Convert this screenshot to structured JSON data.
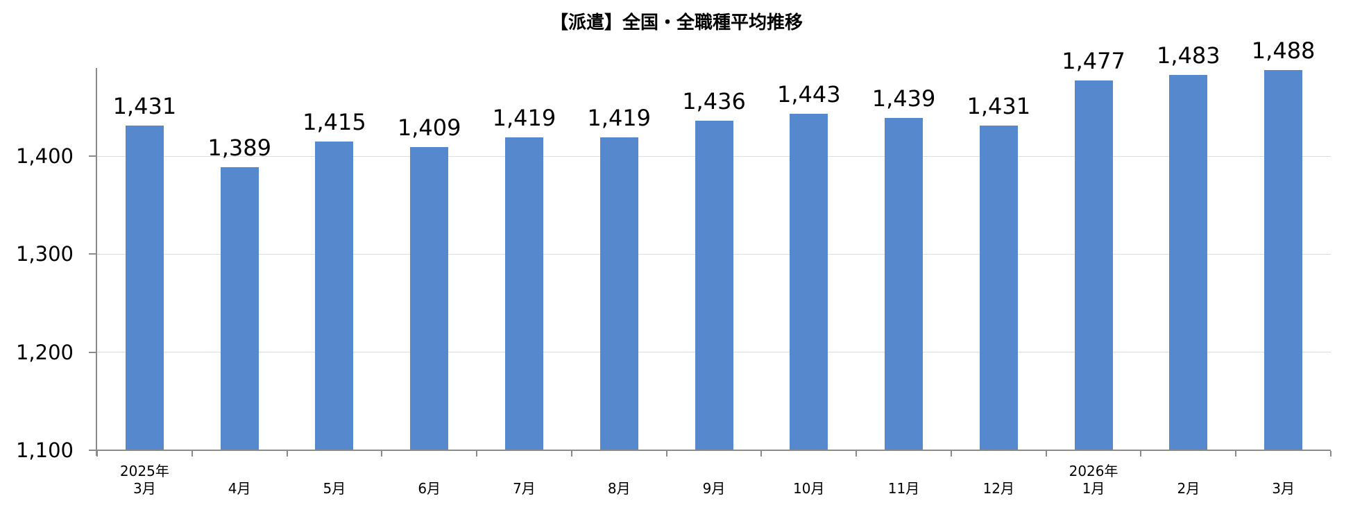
{
  "chart_data": {
    "type": "bar",
    "title": "【派遣】全国・全職種平均推移",
    "months": [
      "3月",
      "4月",
      "5月",
      "6月",
      "7月",
      "8月",
      "9月",
      "10月",
      "11月",
      "12月",
      "1月",
      "2月",
      "3月"
    ],
    "year_markers": [
      {
        "index": 0,
        "label": "2025年"
      },
      {
        "index": 10,
        "label": "2026年"
      }
    ],
    "values": [
      1431,
      1389,
      1415,
      1409,
      1419,
      1419,
      1436,
      1443,
      1439,
      1431,
      1477,
      1483,
      1488
    ],
    "value_labels": [
      "1,431",
      "1,389",
      "1,415",
      "1,409",
      "1,419",
      "1,419",
      "1,436",
      "1,443",
      "1,439",
      "1,431",
      "1,477",
      "1,483",
      "1,488"
    ],
    "y_axis": {
      "min": 1100,
      "max": 1490,
      "ticks": [
        {
          "value": 1100,
          "label": "1,100"
        },
        {
          "value": 1200,
          "label": "1,200"
        },
        {
          "value": 1300,
          "label": "1,300"
        },
        {
          "value": 1400,
          "label": "1,400"
        }
      ],
      "gridlines": [
        1200,
        1300,
        1400
      ]
    },
    "legend": "none",
    "grid": "horizontal-only",
    "colors": {
      "bar": "#5588CC",
      "gridline": "#DCDCDC",
      "axis": "#8A8A8A",
      "text": "#000000"
    }
  }
}
